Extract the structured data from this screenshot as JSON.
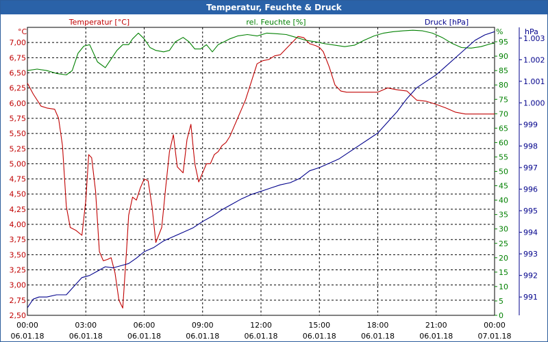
{
  "chart_data": {
    "type": "line",
    "title": "Temperatur, Feuchte & Druck",
    "x_ticks": [
      {
        "time": "00:00",
        "date": "06.01.18"
      },
      {
        "time": "03:00",
        "date": "06.01.18"
      },
      {
        "time": "06:00",
        "date": "06.01.18"
      },
      {
        "time": "09:00",
        "date": "06.01.18"
      },
      {
        "time": "12:00",
        "date": "06.01.18"
      },
      {
        "time": "15:00",
        "date": "06.01.18"
      },
      {
        "time": "18:00",
        "date": "06.01.18"
      },
      {
        "time": "21:00",
        "date": "06.01.18"
      },
      {
        "time": "00:00",
        "date": "07.01.18"
      }
    ],
    "xlim": [
      0,
      24
    ],
    "grid": true,
    "axes": {
      "temperature": {
        "label": "Temperatur [°C]",
        "unit": "°C",
        "ylim": [
          2.5,
          7.25
        ],
        "ticks": [
          "2,50",
          "2,75",
          "3,00",
          "3,25",
          "3,50",
          "3,75",
          "4,00",
          "4,25",
          "4,50",
          "4,75",
          "5,00",
          "5,25",
          "5,50",
          "5,75",
          "6,00",
          "6,25",
          "6,50",
          "6,75",
          "7,00"
        ],
        "color": "#c00000"
      },
      "humidity": {
        "label": "rel. Feuchte [%]",
        "unit": "%",
        "ylim": [
          0,
          100
        ],
        "ticks": [
          "0",
          "5",
          "10",
          "15",
          "20",
          "25",
          "30",
          "35",
          "40",
          "45",
          "50",
          "55",
          "60",
          "65",
          "70",
          "75",
          "80",
          "85",
          "90",
          "95"
        ],
        "color": "#008000"
      },
      "pressure": {
        "label": "Druck [hPa]",
        "unit": "hPa",
        "ylim": [
          990.15,
          1003.5
        ],
        "ticks": [
          "991",
          "992",
          "993",
          "994",
          "995",
          "996",
          "997",
          "998",
          "999",
          "1.000",
          "1.001",
          "1.002",
          "1.003"
        ],
        "tick_values": [
          991,
          992,
          993,
          994,
          995,
          996,
          997,
          998,
          999,
          1000,
          1001,
          1002,
          1003
        ],
        "color": "#00008b"
      }
    },
    "series": [
      {
        "name": "Temperatur [°C]",
        "axis": "temperature",
        "color": "#c00000",
        "x": [
          0,
          0.3,
          0.7,
          1.0,
          1.4,
          1.6,
          1.8,
          2.0,
          2.2,
          2.5,
          2.8,
          3.0,
          3.15,
          3.3,
          3.5,
          3.7,
          3.9,
          4.1,
          4.3,
          4.5,
          4.7,
          4.9,
          5.1,
          5.2,
          5.4,
          5.6,
          5.8,
          6.0,
          6.2,
          6.4,
          6.6,
          6.9,
          7.1,
          7.3,
          7.5,
          7.7,
          8.0,
          8.2,
          8.4,
          8.6,
          8.8,
          9.0,
          9.2,
          9.4,
          9.6,
          9.8,
          10.0,
          10.2,
          10.4,
          10.6,
          10.8,
          11.0,
          11.2,
          11.5,
          11.8,
          12.1,
          12.4,
          12.7,
          13.0,
          13.3,
          13.6,
          13.9,
          14.2,
          14.5,
          14.8,
          15.0,
          15.2,
          15.5,
          15.8,
          16.1,
          16.4,
          16.7,
          17.0,
          17.3,
          17.6,
          18.0,
          18.5,
          19.0,
          19.5,
          20.0,
          20.5,
          21.0,
          21.5,
          22.0,
          22.5,
          23.0,
          23.5,
          24.0
        ],
        "values": [
          6.33,
          6.15,
          5.95,
          5.92,
          5.9,
          5.75,
          5.3,
          4.3,
          3.95,
          3.9,
          3.82,
          4.4,
          5.15,
          5.1,
          4.55,
          3.55,
          3.4,
          3.42,
          3.45,
          3.2,
          2.75,
          2.62,
          3.6,
          4.15,
          4.45,
          4.4,
          4.6,
          4.75,
          4.72,
          4.3,
          3.7,
          3.95,
          4.6,
          5.2,
          5.48,
          4.95,
          4.85,
          5.4,
          5.65,
          5.0,
          4.7,
          4.85,
          5.0,
          5.0,
          5.15,
          5.2,
          5.3,
          5.35,
          5.45,
          5.6,
          5.75,
          5.9,
          6.05,
          6.35,
          6.65,
          6.7,
          6.72,
          6.78,
          6.8,
          6.9,
          7.0,
          7.1,
          7.08,
          6.98,
          6.95,
          6.92,
          6.85,
          6.6,
          6.3,
          6.2,
          6.18,
          6.18,
          6.18,
          6.18,
          6.18,
          6.18,
          6.25,
          6.22,
          6.2,
          6.05,
          6.03,
          5.98,
          5.92,
          5.85,
          5.82,
          5.82,
          5.82,
          5.82
        ]
      },
      {
        "name": "rel. Feuchte [%]",
        "axis": "humidity",
        "color": "#008000",
        "x": [
          0,
          0.5,
          1.0,
          1.5,
          2.0,
          2.3,
          2.6,
          2.9,
          3.2,
          3.6,
          4.0,
          4.3,
          4.6,
          4.9,
          5.2,
          5.4,
          5.7,
          6.0,
          6.3,
          6.6,
          7.0,
          7.3,
          7.6,
          8.0,
          8.3,
          8.6,
          8.9,
          9.2,
          9.5,
          9.8,
          10.1,
          10.4,
          10.8,
          11.3,
          11.8,
          12.3,
          12.8,
          13.3,
          13.8,
          14.3,
          14.8,
          15.3,
          15.8,
          16.3,
          16.8,
          17.3,
          17.8,
          18.3,
          18.8,
          19.3,
          19.8,
          20.3,
          20.8,
          21.3,
          21.8,
          22.3,
          22.8,
          23.3,
          23.8,
          24.0
        ],
        "values": [
          85,
          85.5,
          85,
          84,
          83.5,
          85,
          91,
          93.5,
          94,
          88,
          86,
          89,
          92,
          94,
          94,
          96,
          98,
          96,
          93,
          92,
          91.5,
          92,
          95,
          96.5,
          95,
          92.5,
          92.5,
          94,
          91.5,
          94,
          95,
          96,
          97,
          97.5,
          97,
          98,
          97.8,
          97.5,
          96.5,
          95.5,
          95,
          94.3,
          93.8,
          93.3,
          93.8,
          95.5,
          97,
          98,
          98.5,
          98.8,
          99,
          98.8,
          98,
          96.5,
          94.5,
          93,
          92.8,
          93.3,
          94.3,
          94.5
        ]
      },
      {
        "name": "Druck [hPa]",
        "axis": "pressure",
        "color": "#00008b",
        "x": [
          0,
          0.3,
          0.6,
          1.0,
          1.5,
          2.0,
          2.4,
          2.8,
          3.2,
          3.6,
          4.0,
          4.4,
          4.8,
          5.2,
          5.6,
          6.0,
          6.5,
          7.0,
          7.5,
          8.0,
          8.5,
          9.0,
          9.5,
          10.0,
          10.5,
          11.0,
          11.5,
          12.0,
          12.5,
          13.0,
          13.5,
          14.0,
          14.5,
          15.0,
          15.5,
          16.0,
          16.5,
          17.0,
          17.5,
          18.0,
          18.5,
          19.0,
          19.5,
          20.0,
          20.5,
          21.0,
          21.5,
          22.0,
          22.5,
          23.0,
          23.5,
          24.0
        ],
        "values": [
          990.5,
          990.9,
          991.0,
          991.0,
          991.1,
          991.1,
          991.5,
          991.9,
          992.0,
          992.2,
          992.4,
          992.35,
          992.45,
          992.55,
          992.8,
          993.1,
          993.3,
          993.6,
          993.8,
          994.0,
          994.2,
          994.5,
          994.75,
          995.05,
          995.3,
          995.55,
          995.75,
          995.9,
          996.05,
          996.2,
          996.3,
          996.5,
          996.85,
          997.0,
          997.2,
          997.4,
          997.7,
          998.0,
          998.3,
          998.6,
          999.1,
          999.6,
          1000.2,
          1000.7,
          1001.0,
          1001.3,
          1001.7,
          1002.1,
          1002.5,
          1002.9,
          1003.15,
          1003.3
        ]
      }
    ]
  }
}
